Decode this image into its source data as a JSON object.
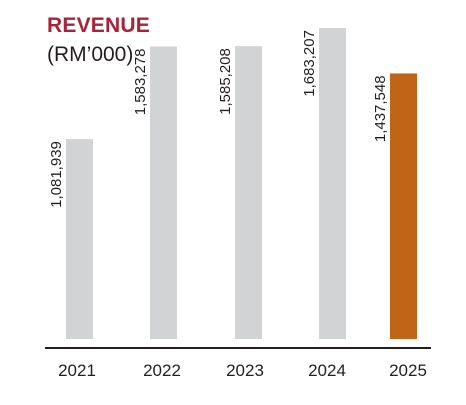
{
  "chart_data": {
    "type": "bar",
    "title": "REVENUE",
    "subtitle": "(RM’000)",
    "categories": [
      "2021",
      "2022",
      "2023",
      "2024",
      "2025"
    ],
    "values": [
      1081939,
      1583278,
      1585208,
      1683207,
      1437548
    ],
    "value_labels": [
      "1,081,939",
      "1,583,278",
      "1,585,208",
      "1,683,207",
      "1,437,548"
    ],
    "ylim": [
      0,
      1770000
    ],
    "grid": false,
    "legend": "none",
    "colors": {
      "bar": "#d2d3d5",
      "highlight_bar": "#c06418",
      "title": "#a8223a",
      "text": "#231f20",
      "axis": "#231f20"
    },
    "highlight_index": 4
  }
}
